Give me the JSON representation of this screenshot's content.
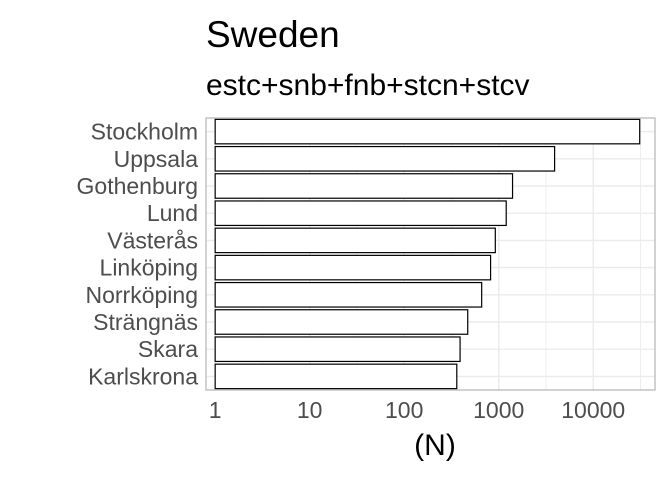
{
  "chart_data": {
    "type": "bar",
    "orientation": "horizontal",
    "title": "Sweden",
    "subtitle": "estc+snb+fnb+stcn+stcv",
    "xlabel": "(N)",
    "ylabel": "",
    "x_scale": "log10",
    "xlim": [
      0.8,
      45000
    ],
    "x_ticks": [
      1,
      10,
      100,
      1000,
      10000
    ],
    "x_tick_labels": [
      "1",
      "10",
      "100",
      "1000",
      "10000"
    ],
    "categories": [
      "Stockholm",
      "Uppsala",
      "Gothenburg",
      "Lund",
      "Västerås",
      "Linköping",
      "Norrköping",
      "Strängnäs",
      "Skara",
      "Karlskrona"
    ],
    "values": [
      31000,
      3900,
      1400,
      1200,
      920,
      820,
      660,
      470,
      390,
      360
    ],
    "grid": true,
    "legend": "none",
    "colors": {
      "bar_fill": "#ffffff",
      "bar_stroke": "#000000",
      "grid": "#ebebeb",
      "panel_border": "#b3b3b3",
      "tick_label": "#4d4d4d"
    }
  }
}
